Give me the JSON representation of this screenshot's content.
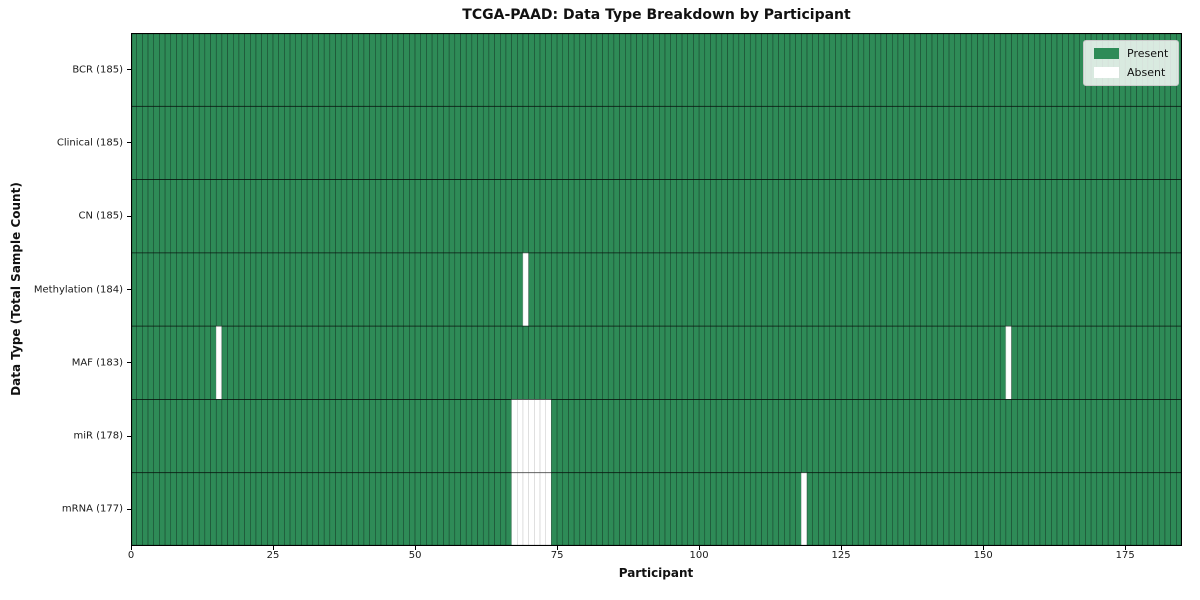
{
  "chart_data": {
    "type": "heatmap",
    "title": "TCGA-PAAD: Data Type Breakdown by Participant",
    "xlabel": "Participant",
    "ylabel": "Data Type (Total Sample Count)",
    "n_participants": 185,
    "xlim": [
      0,
      185
    ],
    "x_ticks": [
      0,
      25,
      50,
      75,
      100,
      125,
      150,
      175
    ],
    "legend_position": "upper-right",
    "grid": "cell-borders",
    "rows": [
      {
        "data_type": "BCR",
        "label": "BCR (185)",
        "total": 185,
        "absent_participants": []
      },
      {
        "data_type": "Clinical",
        "label": "Clinical (185)",
        "total": 185,
        "absent_participants": []
      },
      {
        "data_type": "CN",
        "label": "CN (185)",
        "total": 185,
        "absent_participants": []
      },
      {
        "data_type": "Methylation",
        "label": "Methylation (184)",
        "total": 184,
        "absent_participants": [
          69
        ]
      },
      {
        "data_type": "MAF",
        "label": "MAF (183)",
        "total": 183,
        "absent_participants": [
          15,
          154
        ]
      },
      {
        "data_type": "miR",
        "label": "miR (178)",
        "total": 178,
        "absent_participants": [
          67,
          68,
          69,
          70,
          71,
          72,
          73
        ]
      },
      {
        "data_type": "mRNA",
        "label": "mRNA (177)",
        "total": 177,
        "absent_participants": [
          67,
          68,
          69,
          70,
          71,
          72,
          73,
          118
        ]
      }
    ],
    "legend": [
      {
        "label": "Present",
        "color": "#2e8b57"
      },
      {
        "label": "Absent",
        "color": "#ffffff"
      }
    ],
    "colors": {
      "present": "#2e8b57",
      "absent": "#ffffff",
      "edge_on_present": "#17402b",
      "edge_on_absent": "#c8c8c8",
      "row_divider": "rgba(0,0,0,0.65)",
      "axis": "#000000"
    }
  }
}
